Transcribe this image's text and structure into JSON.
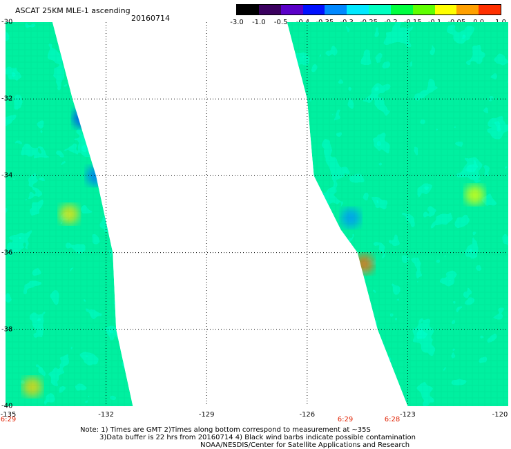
{
  "header": {
    "title": "ASCAT 25KM MLE-1 ascending",
    "date": "20160714"
  },
  "colorbar": {
    "labels": [
      "-3.0",
      "-1.0",
      "-0.5",
      "-0.4",
      "-0.35",
      "-0.3",
      "-0.25",
      "-0.2",
      "-0.15",
      "-0.1",
      "-0.05",
      "0.0",
      "1.0"
    ],
    "colors": [
      "#000000",
      "#3a005f",
      "#5a00c8",
      "#0010ff",
      "#0088ff",
      "#00e8ff",
      "#00ffc0",
      "#00ff40",
      "#60ff00",
      "#ffff00",
      "#ffa000",
      "#ff3000"
    ]
  },
  "map": {
    "lat_labels": [
      "-30",
      "-32",
      "-34",
      "-36",
      "-38",
      "-40"
    ],
    "lon_labels": [
      "-135",
      "-132",
      "-129",
      "-126",
      "-123",
      "-120"
    ],
    "time_labels": [
      "6:29",
      "6:29",
      "6:28"
    ],
    "lat_range": [
      -40,
      -30
    ],
    "lon_range": [
      -135,
      -120
    ],
    "swaths": [
      {
        "name": "west-swath",
        "edge": "right",
        "outline_lon_lat": [
          [
            -135,
            -30
          ],
          [
            -133.6,
            -30
          ],
          [
            -133.0,
            -32.0
          ],
          [
            -132.3,
            -34.0
          ],
          [
            -131.8,
            -36.0
          ],
          [
            -131.7,
            -38.0
          ],
          [
            -131.2,
            -40.0
          ],
          [
            -135,
            -40.0
          ]
        ]
      },
      {
        "name": "east-swath",
        "edge": "left",
        "outline_lon_lat": [
          [
            -126.6,
            -30
          ],
          [
            -120,
            -30
          ],
          [
            -120,
            -40.0
          ],
          [
            -123.0,
            -40.0
          ],
          [
            -123.9,
            -38.0
          ],
          [
            -124.5,
            -36.0
          ],
          [
            -125.0,
            -35.4
          ],
          [
            -125.8,
            -34.0
          ],
          [
            -126.0,
            -32.0
          ],
          [
            -126.6,
            -30.0
          ]
        ]
      }
    ],
    "hotspots": [
      {
        "lon": -134.2,
        "lat": -39.5,
        "value": -0.1,
        "color": "#ffd000"
      },
      {
        "lon": -133.1,
        "lat": -35.0,
        "value": -0.1,
        "color": "#ffe000"
      },
      {
        "lon": -132.7,
        "lat": -32.5,
        "value": -0.4,
        "color": "#0030ff"
      },
      {
        "lon": -132.3,
        "lat": -34.0,
        "value": -0.35,
        "color": "#0070ff"
      },
      {
        "lon": -124.3,
        "lat": -36.3,
        "value": 0.0,
        "color": "#ff6000"
      },
      {
        "lon": -124.7,
        "lat": -35.1,
        "value": -0.35,
        "color": "#0090ff"
      },
      {
        "lon": -121.0,
        "lat": -34.5,
        "value": -0.1,
        "color": "#f0ff00"
      }
    ]
  },
  "notes": {
    "line1": "Note: 1) Times are GMT 2)Times along bottom correspond to measurement at ~35S",
    "line2": "3)Data buffer is 22 hrs from 20160714 4) Black wind barbs indicate possible contamination",
    "line3": "NOAA/NESDIS/Center for Satellite Applications and Research"
  }
}
